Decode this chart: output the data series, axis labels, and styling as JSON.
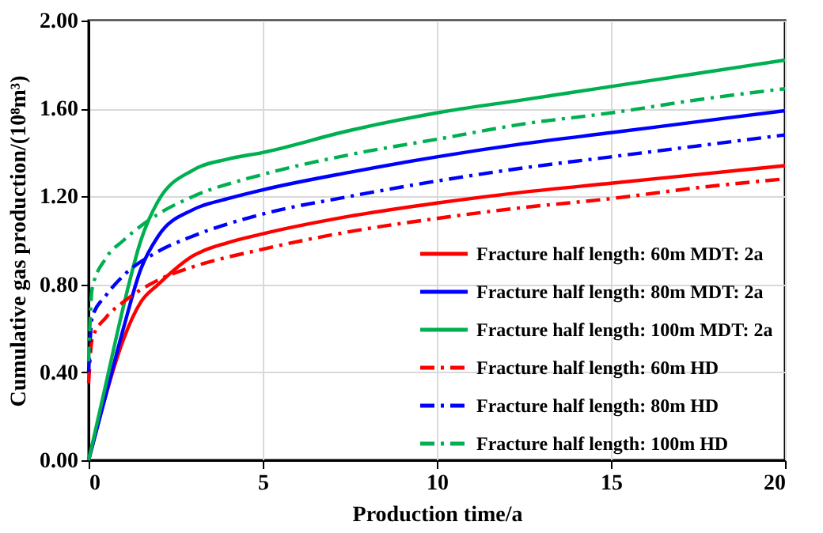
{
  "chart_data": {
    "type": "line",
    "xlabel": "Production time/a",
    "ylabel": "Cumulative gas production/(10⁸m³)",
    "xlim": [
      0,
      20
    ],
    "xticks": [
      0,
      5,
      10,
      15,
      20
    ],
    "ylim": [
      0,
      2
    ],
    "yticks": [
      {
        "value": 0,
        "label": "0.00"
      },
      {
        "value": 0.4,
        "label": "0.40"
      },
      {
        "value": 0.8,
        "label": "0.80"
      },
      {
        "value": 1.2,
        "label": "1.20"
      },
      {
        "value": 1.6,
        "label": "1.60"
      },
      {
        "value": 2,
        "label": "2.00"
      }
    ],
    "grid": true,
    "legend": "bottom right",
    "series": [
      {
        "name": "Fracture half length: 60m  MDT: 2a",
        "color": "#ff0000",
        "line_style": "solid",
        "x": [
          0,
          0.5,
          1,
          1.5,
          2,
          3,
          4,
          5,
          7.5,
          10,
          12.5,
          15,
          17.5,
          20
        ],
        "values": [
          0,
          0.3,
          0.55,
          0.72,
          0.8,
          0.93,
          0.99,
          1.03,
          1.11,
          1.17,
          1.22,
          1.26,
          1.3,
          1.34
        ]
      },
      {
        "name": "Fracture half length: 80m  MDT: 2a",
        "color": "#0000ff",
        "line_style": "solid",
        "x": [
          0,
          0.5,
          1,
          1.5,
          2,
          3,
          4,
          5,
          7.5,
          10,
          12.5,
          15,
          17.5,
          20
        ],
        "values": [
          0,
          0.3,
          0.6,
          0.87,
          1.02,
          1.14,
          1.19,
          1.23,
          1.31,
          1.38,
          1.44,
          1.49,
          1.54,
          1.59
        ]
      },
      {
        "name": "Fracture half length: 100m  MDT: 2a",
        "color": "#00b050",
        "line_style": "solid",
        "x": [
          0,
          0.5,
          1,
          1.5,
          2,
          3,
          4,
          5,
          7.5,
          10,
          12.5,
          15,
          17.5,
          20
        ],
        "values": [
          0,
          0.35,
          0.7,
          1.0,
          1.18,
          1.32,
          1.37,
          1.4,
          1.5,
          1.58,
          1.64,
          1.7,
          1.76,
          1.82
        ]
      },
      {
        "name": "Fracture half length: 60m  HD",
        "color": "#ff0000",
        "line_style": "dashed",
        "x": [
          0,
          0.1,
          0.5,
          1,
          2,
          3,
          5,
          7.5,
          10,
          12.5,
          15,
          17.5,
          20
        ],
        "values": [
          0.35,
          0.55,
          0.65,
          0.72,
          0.82,
          0.88,
          0.96,
          1.04,
          1.1,
          1.15,
          1.19,
          1.24,
          1.28
        ]
      },
      {
        "name": "Fracture half length: 80m  HD",
        "color": "#0000ff",
        "line_style": "dashed",
        "x": [
          0,
          0.1,
          0.5,
          1,
          2,
          3,
          5,
          7.5,
          10,
          12.5,
          15,
          17.5,
          20
        ],
        "values": [
          0.4,
          0.65,
          0.75,
          0.84,
          0.95,
          1.02,
          1.12,
          1.2,
          1.27,
          1.33,
          1.38,
          1.43,
          1.48
        ]
      },
      {
        "name": "Fracture half length: 100m  HD",
        "color": "#00b050",
        "line_style": "dashed",
        "x": [
          0,
          0.1,
          0.5,
          1,
          2,
          3,
          5,
          7.5,
          10,
          12.5,
          15,
          17.5,
          20
        ],
        "values": [
          0.45,
          0.78,
          0.92,
          1.0,
          1.12,
          1.2,
          1.3,
          1.39,
          1.46,
          1.53,
          1.58,
          1.64,
          1.69
        ]
      }
    ]
  }
}
